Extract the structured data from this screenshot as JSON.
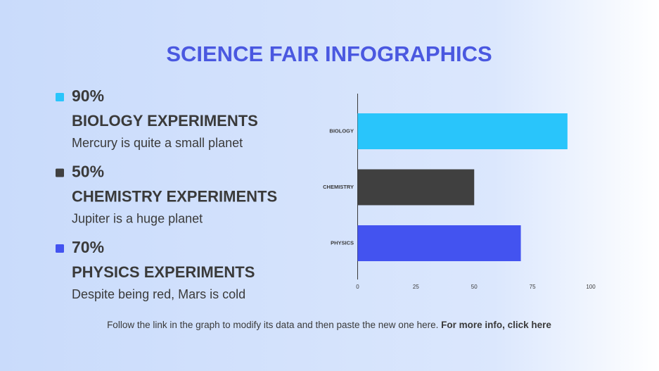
{
  "chart_data": {
    "type": "bar",
    "orientation": "horizontal",
    "title": "SCIENCE FAIR INFOGRAPHICS",
    "categories": [
      "BIOLOGY",
      "CHEMISTRY",
      "PHYSICS"
    ],
    "values": [
      90,
      50,
      70
    ],
    "value_labels": [
      "90%",
      "50%",
      "70%"
    ],
    "colors": [
      "#29c5fb",
      "#404040",
      "#4353f0"
    ],
    "xlim": [
      0,
      100
    ],
    "xticks": [
      0,
      25,
      50,
      75,
      100
    ],
    "grid": false
  },
  "items": [
    {
      "heading": "BIOLOGY EXPERIMENTS",
      "text": "Mercury is quite a small planet"
    },
    {
      "heading": "CHEMISTRY EXPERIMENTS",
      "text": "Jupiter is a huge planet"
    },
    {
      "heading": "PHYSICS EXPERIMENTS",
      "text": "Despite being red, Mars is cold"
    }
  ],
  "footer": {
    "text": "Follow the link in the graph to modify its data and then paste the new one here.",
    "link": "For more info, click here"
  }
}
